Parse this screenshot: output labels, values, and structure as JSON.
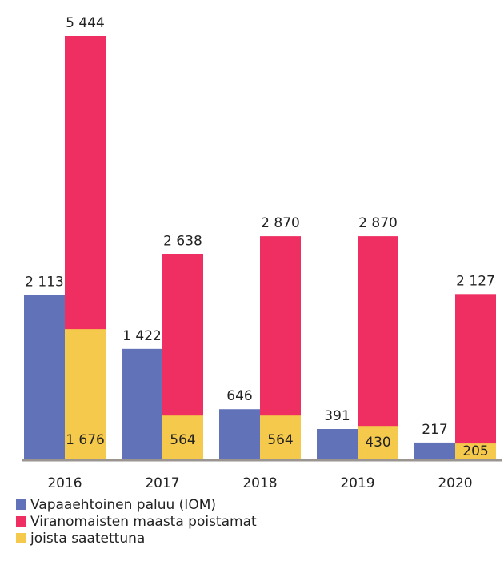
{
  "chart_data": {
    "type": "bar",
    "categories": [
      "2016",
      "2017",
      "2018",
      "2019",
      "2020"
    ],
    "series": [
      {
        "name": "Vapaaehtoinen paluu (IOM)",
        "color": "#6272b8",
        "values": [
          2113,
          1422,
          646,
          391,
          217
        ],
        "value_labels": [
          "2 113",
          "1 422",
          "646",
          "391",
          "217"
        ]
      },
      {
        "name": "Viranomaisten maasta poistamat",
        "color": "#ef2f62",
        "values": [
          5444,
          2638,
          2870,
          2870,
          2127
        ],
        "value_labels": [
          "5 444",
          "2 638",
          "2 870",
          "2 870",
          "2 127"
        ]
      },
      {
        "name": "joista saatettuna",
        "color": "#f5c94c",
        "values": [
          1676,
          564,
          564,
          430,
          205
        ],
        "value_labels": [
          "1 676",
          "564",
          "564",
          "430",
          "205"
        ]
      }
    ]
  }
}
